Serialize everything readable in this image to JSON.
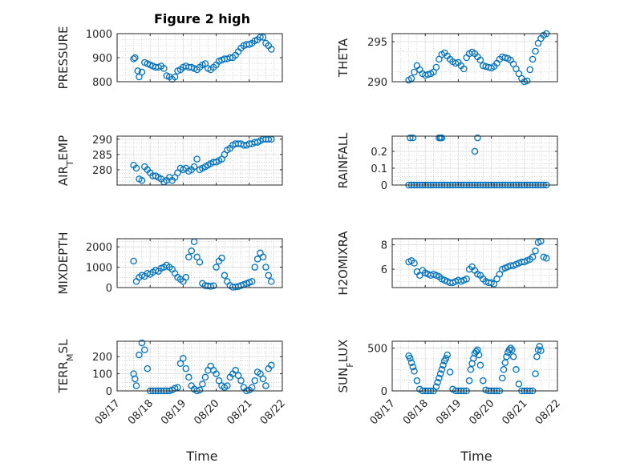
{
  "title": "Figure 2 high",
  "xlabel": "Time",
  "colors": {
    "marker": "#0072BD",
    "axis": "#262626",
    "grid": "#b8b8b8",
    "background": "#ffffff"
  },
  "x_tick_labels": [
    "08/17",
    "08/18",
    "08/19",
    "08/20",
    "08/21",
    "08/22"
  ],
  "chart_data": [
    {
      "type": "scatter",
      "ylabel": "PRESSURE",
      "ylim": [
        800,
        1000
      ],
      "yticks": [
        800,
        900,
        1000
      ],
      "xlim": [
        "08/17",
        "08/22"
      ],
      "grid": true,
      "marker": "open-circle",
      "x": [
        "08/17 12:00",
        "08/17 13:00",
        "08/17 15:00",
        "08/17 16:00",
        "08/17 18:00",
        "08/17 20:00",
        "08/17 22:00",
        "08/18 00:00",
        "08/18 02:00",
        "08/18 04:00",
        "08/18 06:00",
        "08/18 08:00",
        "08/18 10:00",
        "08/18 12:00",
        "08/18 14:00",
        "08/18 16:00",
        "08/18 18:00",
        "08/18 20:00",
        "08/18 22:00",
        "08/19 00:00",
        "08/19 02:00",
        "08/19 04:00",
        "08/19 06:00",
        "08/19 08:00",
        "08/19 10:00",
        "08/19 12:00",
        "08/19 14:00",
        "08/19 16:00",
        "08/19 18:00",
        "08/19 20:00",
        "08/19 22:00",
        "08/20 00:00",
        "08/20 02:00",
        "08/20 04:00",
        "08/20 06:00",
        "08/20 08:00",
        "08/20 10:00",
        "08/20 12:00",
        "08/20 14:00",
        "08/20 16:00",
        "08/20 18:00",
        "08/20 20:00",
        "08/20 22:00",
        "08/21 00:00",
        "08/21 02:00",
        "08/21 04:00",
        "08/21 06:00",
        "08/21 08:00",
        "08/21 10:00",
        "08/21 12:00",
        "08/21 14:00",
        "08/21 16:00"
      ],
      "y": [
        895,
        900,
        845,
        820,
        840,
        880,
        875,
        870,
        865,
        860,
        860,
        865,
        855,
        825,
        820,
        810,
        820,
        845,
        850,
        860,
        865,
        860,
        860,
        855,
        850,
        860,
        870,
        875,
        855,
        850,
        860,
        870,
        885,
        890,
        895,
        895,
        900,
        900,
        910,
        925,
        940,
        950,
        955,
        955,
        960,
        970,
        975,
        985,
        985,
        960,
        950,
        935
      ]
    },
    {
      "type": "scatter",
      "ylabel": "THETA",
      "ylim": [
        290,
        296
      ],
      "yticks": [
        290,
        295
      ],
      "xlim": [
        "08/17",
        "08/22"
      ],
      "grid": true,
      "marker": "open-circle",
      "x": [
        "08/17 12:00",
        "08/17 14:00",
        "08/17 16:00",
        "08/17 18:00",
        "08/17 20:00",
        "08/17 22:00",
        "08/18 00:00",
        "08/18 02:00",
        "08/18 04:00",
        "08/18 06:00",
        "08/18 08:00",
        "08/18 10:00",
        "08/18 12:00",
        "08/18 14:00",
        "08/18 16:00",
        "08/18 18:00",
        "08/18 20:00",
        "08/18 22:00",
        "08/19 00:00",
        "08/19 02:00",
        "08/19 04:00",
        "08/19 06:00",
        "08/19 08:00",
        "08/19 10:00",
        "08/19 12:00",
        "08/19 14:00",
        "08/19 16:00",
        "08/19 18:00",
        "08/19 20:00",
        "08/19 22:00",
        "08/20 00:00",
        "08/20 02:00",
        "08/20 04:00",
        "08/20 06:00",
        "08/20 08:00",
        "08/20 10:00",
        "08/20 12:00",
        "08/20 14:00",
        "08/20 16:00",
        "08/20 18:00",
        "08/20 20:00",
        "08/20 22:00",
        "08/21 00:00",
        "08/21 02:00",
        "08/21 04:00",
        "08/21 06:00",
        "08/21 08:00",
        "08/21 10:00",
        "08/21 12:00",
        "08/21 14:00",
        "08/21 16:00"
      ],
      "y": [
        290.2,
        290.4,
        291.2,
        292.0,
        291.5,
        291.0,
        290.8,
        290.9,
        291.0,
        291.2,
        291.8,
        292.8,
        293.4,
        293.6,
        293.2,
        292.8,
        292.5,
        292.3,
        292.4,
        292.0,
        291.6,
        293.0,
        293.5,
        293.7,
        293.5,
        293.1,
        292.7,
        292.0,
        291.9,
        291.8,
        291.7,
        291.9,
        292.3,
        292.8,
        293.1,
        293.0,
        292.9,
        292.7,
        292.2,
        291.6,
        291.0,
        290.4,
        290.0,
        290.1,
        291.5,
        292.8,
        293.8,
        294.8,
        295.4,
        295.8,
        296.0
      ]
    },
    {
      "type": "scatter",
      "ylabel": "AIR_TEMP",
      "ylim": [
        275,
        291
      ],
      "yticks": [
        280,
        285,
        290
      ],
      "xlim": [
        "08/17",
        "08/22"
      ],
      "grid": true,
      "marker": "open-circle",
      "x": [
        "08/17 12:00",
        "08/17 14:00",
        "08/17 16:00",
        "08/17 18:00",
        "08/17 20:00",
        "08/17 22:00",
        "08/18 00:00",
        "08/18 02:00",
        "08/18 04:00",
        "08/18 06:00",
        "08/18 08:00",
        "08/18 10:00",
        "08/18 12:00",
        "08/18 14:00",
        "08/18 16:00",
        "08/18 18:00",
        "08/18 20:00",
        "08/18 22:00",
        "08/19 00:00",
        "08/19 02:00",
        "08/19 04:00",
        "08/19 06:00",
        "08/19 08:00",
        "08/19 10:00",
        "08/19 12:00",
        "08/19 14:00",
        "08/19 16:00",
        "08/19 18:00",
        "08/19 20:00",
        "08/19 22:00",
        "08/20 00:00",
        "08/20 02:00",
        "08/20 04:00",
        "08/20 06:00",
        "08/20 08:00",
        "08/20 10:00",
        "08/20 12:00",
        "08/20 14:00",
        "08/20 16:00",
        "08/20 18:00",
        "08/20 20:00",
        "08/20 22:00",
        "08/21 00:00",
        "08/21 02:00",
        "08/21 04:00",
        "08/21 06:00",
        "08/21 08:00",
        "08/21 10:00",
        "08/21 12:00",
        "08/21 14:00",
        "08/21 16:00"
      ],
      "y": [
        281.5,
        280.5,
        277.0,
        276.5,
        281.0,
        280.0,
        279.0,
        278.0,
        278.0,
        277.5,
        277.0,
        276.0,
        276.5,
        277.5,
        276.5,
        277.5,
        279.0,
        280.5,
        280.0,
        280.5,
        279.5,
        280.0,
        281.0,
        283.5,
        280.0,
        280.5,
        281.0,
        281.5,
        282.0,
        282.5,
        282.5,
        283.0,
        283.5,
        285.0,
        286.5,
        287.0,
        288.0,
        288.5,
        288.5,
        288.5,
        288.0,
        288.0,
        288.5,
        288.5,
        289.0,
        289.0,
        289.5,
        290.0,
        290.0,
        290.0,
        290.0
      ]
    },
    {
      "type": "scatter",
      "ylabel": "RAINFALL",
      "ylim": [
        0,
        0.29
      ],
      "yticks": [
        0,
        0.1,
        0.2
      ],
      "xlim": [
        "08/17",
        "08/22"
      ],
      "grid": true,
      "marker": "open-circle",
      "x": [
        "08/17 12:00",
        "08/17 14:00",
        "08/17 16:00",
        "08/17 18:00",
        "08/17 20:00",
        "08/17 22:00",
        "08/18 00:00",
        "08/18 02:00",
        "08/18 04:00",
        "08/18 06:00",
        "08/18 08:00",
        "08/18 10:00",
        "08/18 12:00",
        "08/18 14:00",
        "08/18 16:00",
        "08/18 18:00",
        "08/18 20:00",
        "08/18 22:00",
        "08/19 00:00",
        "08/19 02:00",
        "08/19 04:00",
        "08/19 06:00",
        "08/19 08:00",
        "08/19 10:00",
        "08/19 12:00",
        "08/19 14:00",
        "08/19 16:00",
        "08/19 18:00",
        "08/19 20:00",
        "08/19 22:00",
        "08/20 00:00",
        "08/20 02:00",
        "08/20 04:00",
        "08/20 06:00",
        "08/20 08:00",
        "08/20 10:00",
        "08/20 12:00",
        "08/20 14:00",
        "08/20 16:00",
        "08/20 18:00",
        "08/20 20:00",
        "08/20 22:00",
        "08/21 00:00",
        "08/21 02:00",
        "08/21 04:00",
        "08/21 06:00",
        "08/21 08:00",
        "08/21 10:00",
        "08/21 12:00",
        "08/21 14:00",
        "08/21 16:00",
        "08/17 13:00",
        "08/17 15:00",
        "08/18 10:00",
        "08/18 11:00",
        "08/18 12:00",
        "08/19 12:00",
        "08/19 14:00"
      ],
      "y": [
        0,
        0,
        0,
        0,
        0,
        0,
        0,
        0,
        0,
        0,
        0,
        0,
        0,
        0,
        0,
        0,
        0,
        0,
        0,
        0,
        0,
        0,
        0,
        0,
        0,
        0,
        0,
        0,
        0,
        0,
        0,
        0,
        0,
        0,
        0,
        0,
        0,
        0,
        0,
        0,
        0,
        0,
        0,
        0,
        0,
        0,
        0,
        0,
        0,
        0,
        0,
        0.28,
        0.28,
        0.28,
        0.28,
        0.28,
        0.2,
        0.28
      ]
    },
    {
      "type": "scatter",
      "ylabel": "MIXDEPTH",
      "ylim": [
        0,
        2400
      ],
      "yticks": [
        0,
        1000,
        2000
      ],
      "xlim": [
        "08/17",
        "08/22"
      ],
      "grid": true,
      "marker": "open-circle",
      "x": [
        "08/17 12:00",
        "08/17 14:00",
        "08/17 16:00",
        "08/17 18:00",
        "08/17 20:00",
        "08/17 22:00",
        "08/18 00:00",
        "08/18 02:00",
        "08/18 04:00",
        "08/18 06:00",
        "08/18 08:00",
        "08/18 10:00",
        "08/18 12:00",
        "08/18 14:00",
        "08/18 16:00",
        "08/18 18:00",
        "08/18 20:00",
        "08/18 22:00",
        "08/19 00:00",
        "08/19 02:00",
        "08/19 04:00",
        "08/19 06:00",
        "08/19 08:00",
        "08/19 10:00",
        "08/19 12:00",
        "08/19 14:00",
        "08/19 16:00",
        "08/19 18:00",
        "08/19 20:00",
        "08/19 22:00",
        "08/20 00:00",
        "08/20 02:00",
        "08/20 04:00",
        "08/20 06:00",
        "08/20 08:00",
        "08/20 10:00",
        "08/20 12:00",
        "08/20 14:00",
        "08/20 16:00",
        "08/20 18:00",
        "08/20 20:00",
        "08/20 22:00",
        "08/21 00:00",
        "08/21 02:00",
        "08/21 04:00",
        "08/21 06:00",
        "08/21 08:00",
        "08/21 10:00",
        "08/21 12:00",
        "08/21 14:00",
        "08/21 16:00"
      ],
      "y": [
        1300,
        300,
        500,
        600,
        550,
        700,
        650,
        750,
        850,
        800,
        950,
        1000,
        1100,
        1000,
        900,
        700,
        500,
        400,
        300,
        500,
        1500,
        1800,
        2250,
        1500,
        1250,
        200,
        100,
        80,
        60,
        90,
        1000,
        1300,
        1450,
        600,
        300,
        100,
        20,
        30,
        50,
        100,
        150,
        200,
        250,
        300,
        1000,
        1400,
        1700,
        1500,
        1000,
        600,
        300
      ]
    },
    {
      "type": "scatter",
      "ylabel": "H2OMIXRA",
      "ylim": [
        4.5,
        8.5
      ],
      "yticks": [
        6,
        8
      ],
      "xlim": [
        "08/17",
        "08/22"
      ],
      "grid": true,
      "marker": "open-circle",
      "x": [
        "08/17 12:00",
        "08/17 14:00",
        "08/17 16:00",
        "08/17 18:00",
        "08/17 20:00",
        "08/17 22:00",
        "08/18 00:00",
        "08/18 02:00",
        "08/18 04:00",
        "08/18 06:00",
        "08/18 08:00",
        "08/18 10:00",
        "08/18 12:00",
        "08/18 14:00",
        "08/18 16:00",
        "08/18 18:00",
        "08/18 20:00",
        "08/18 22:00",
        "08/19 00:00",
        "08/19 02:00",
        "08/19 04:00",
        "08/19 06:00",
        "08/19 08:00",
        "08/19 10:00",
        "08/19 12:00",
        "08/19 14:00",
        "08/19 16:00",
        "08/19 18:00",
        "08/19 20:00",
        "08/19 22:00",
        "08/20 00:00",
        "08/20 02:00",
        "08/20 04:00",
        "08/20 06:00",
        "08/20 08:00",
        "08/20 10:00",
        "08/20 12:00",
        "08/20 14:00",
        "08/20 16:00",
        "08/20 18:00",
        "08/20 20:00",
        "08/20 22:00",
        "08/21 00:00",
        "08/21 02:00",
        "08/21 04:00",
        "08/21 06:00",
        "08/21 08:00",
        "08/21 10:00",
        "08/21 12:00",
        "08/21 14:00",
        "08/21 16:00"
      ],
      "y": [
        6.6,
        6.7,
        6.5,
        5.8,
        5.5,
        5.9,
        5.7,
        5.6,
        5.5,
        5.6,
        5.5,
        5.4,
        5.2,
        5.1,
        5.0,
        4.9,
        4.9,
        5.0,
        5.1,
        5.0,
        5.1,
        5.2,
        6.0,
        6.2,
        5.9,
        5.6,
        5.5,
        5.2,
        5.0,
        4.9,
        4.9,
        4.8,
        5.2,
        5.6,
        6.0,
        6.1,
        6.2,
        6.3,
        6.3,
        6.4,
        6.5,
        6.6,
        6.6,
        6.7,
        6.8,
        7.0,
        7.5,
        8.2,
        8.3,
        7.0,
        6.9
      ]
    },
    {
      "type": "scatter",
      "ylabel": "TERR_MSL",
      "ylim": [
        0,
        290
      ],
      "yticks": [
        0,
        100,
        200
      ],
      "xlim": [
        "08/17",
        "08/22"
      ],
      "grid": true,
      "marker": "open-circle",
      "x": [
        "08/17 12:00",
        "08/17 13:00",
        "08/17 14:00",
        "08/17 16:00",
        "08/17 18:00",
        "08/17 20:00",
        "08/17 22:00",
        "08/18 00:00",
        "08/18 02:00",
        "08/18 04:00",
        "08/18 06:00",
        "08/18 08:00",
        "08/18 10:00",
        "08/18 12:00",
        "08/18 14:00",
        "08/18 16:00",
        "08/18 18:00",
        "08/18 20:00",
        "08/18 22:00",
        "08/19 00:00",
        "08/19 02:00",
        "08/19 04:00",
        "08/19 06:00",
        "08/19 08:00",
        "08/19 10:00",
        "08/19 12:00",
        "08/19 14:00",
        "08/19 16:00",
        "08/19 18:00",
        "08/19 20:00",
        "08/19 22:00",
        "08/20 00:00",
        "08/20 02:00",
        "08/20 04:00",
        "08/20 06:00",
        "08/20 08:00",
        "08/20 10:00",
        "08/20 12:00",
        "08/20 14:00",
        "08/20 16:00",
        "08/20 18:00",
        "08/20 20:00",
        "08/20 22:00",
        "08/21 00:00",
        "08/21 02:00",
        "08/21 04:00",
        "08/21 06:00",
        "08/21 08:00",
        "08/21 10:00",
        "08/21 12:00",
        "08/21 14:00",
        "08/21 16:00"
      ],
      "y": [
        100,
        70,
        30,
        210,
        280,
        240,
        130,
        0,
        0,
        0,
        0,
        0,
        0,
        0,
        0,
        5,
        15,
        20,
        160,
        190,
        130,
        80,
        30,
        10,
        0,
        5,
        40,
        80,
        120,
        145,
        120,
        100,
        60,
        30,
        20,
        30,
        80,
        100,
        120,
        90,
        60,
        20,
        0,
        5,
        20,
        60,
        110,
        100,
        70,
        30,
        130,
        150
      ]
    },
    {
      "type": "scatter",
      "ylabel": "SUN_FLUX",
      "ylim": [
        0,
        580
      ],
      "yticks": [
        0,
        500
      ],
      "xlim": [
        "08/17",
        "08/22"
      ],
      "grid": true,
      "marker": "open-circle",
      "x": [
        "08/17 12:00",
        "08/17 13:00",
        "08/17 14:00",
        "08/17 15:00",
        "08/17 16:00",
        "08/17 18:00",
        "08/17 20:00",
        "08/17 22:00",
        "08/18 00:00",
        "08/18 02:00",
        "08/18 04:00",
        "08/18 06:00",
        "08/18 08:00",
        "08/18 09:00",
        "08/18 10:00",
        "08/18 11:00",
        "08/18 12:00",
        "08/18 13:00",
        "08/18 14:00",
        "08/18 15:00",
        "08/18 16:00",
        "08/18 18:00",
        "08/18 20:00",
        "08/18 22:00",
        "08/19 00:00",
        "08/19 02:00",
        "08/19 04:00",
        "08/19 06:00",
        "08/19 08:00",
        "08/19 09:00",
        "08/19 10:00",
        "08/19 11:00",
        "08/19 12:00",
        "08/19 13:00",
        "08/19 14:00",
        "08/19 15:00",
        "08/19 16:00",
        "08/19 18:00",
        "08/19 20:00",
        "08/19 22:00",
        "08/20 00:00",
        "08/20 02:00",
        "08/20 04:00",
        "08/20 06:00",
        "08/20 08:00",
        "08/20 09:00",
        "08/20 10:00",
        "08/20 11:00",
        "08/20 12:00",
        "08/20 13:00",
        "08/20 14:00",
        "08/20 15:00",
        "08/20 16:00",
        "08/20 18:00",
        "08/20 20:00",
        "08/20 22:00",
        "08/21 00:00",
        "08/21 02:00",
        "08/21 04:00",
        "08/21 06:00",
        "08/21 08:00",
        "08/21 09:00",
        "08/21 10:00",
        "08/21 11:00",
        "08/21 12:00"
      ],
      "y": [
        410,
        380,
        330,
        280,
        230,
        120,
        20,
        0,
        0,
        0,
        0,
        0,
        50,
        100,
        150,
        200,
        250,
        300,
        350,
        380,
        420,
        220,
        20,
        0,
        0,
        0,
        0,
        0,
        120,
        250,
        320,
        380,
        440,
        460,
        480,
        420,
        300,
        120,
        10,
        0,
        0,
        0,
        0,
        0,
        150,
        250,
        330,
        400,
        450,
        480,
        500,
        480,
        400,
        250,
        80,
        0,
        0,
        0,
        0,
        0,
        200,
        400,
        480,
        520,
        470
      ]
    }
  ]
}
